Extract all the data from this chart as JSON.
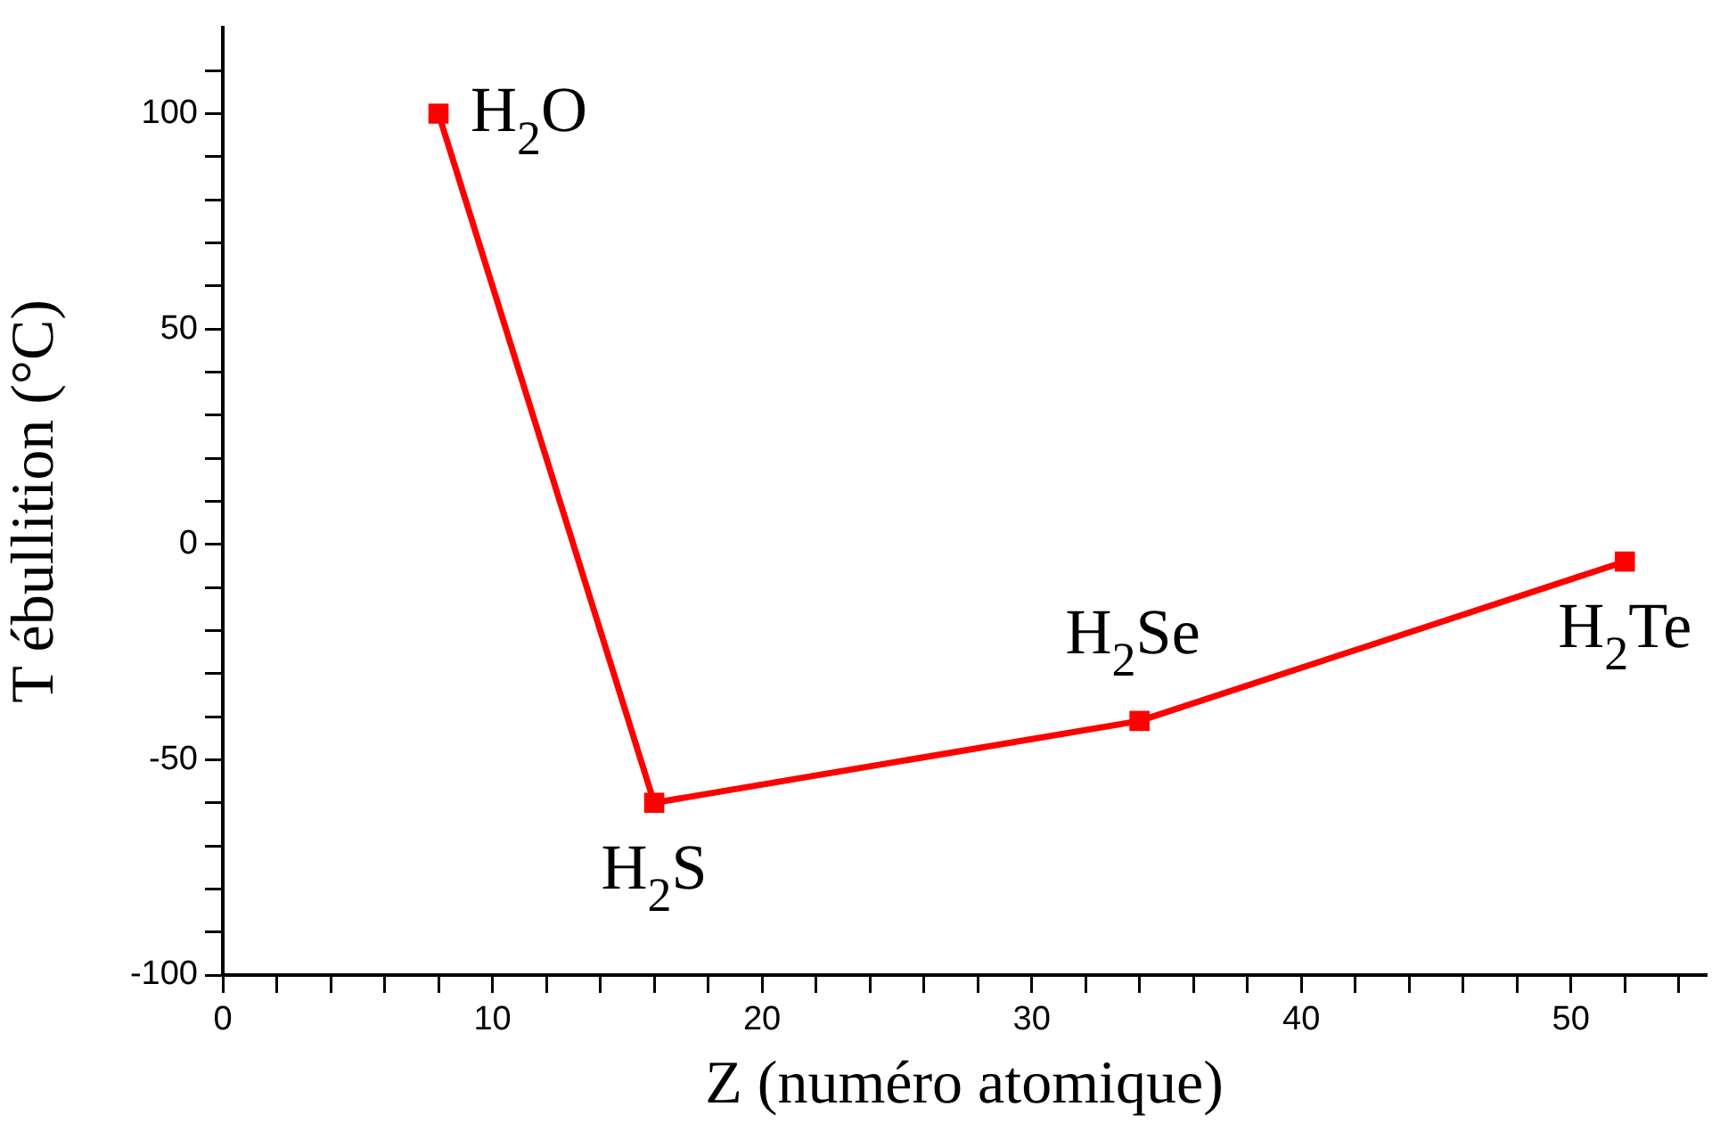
{
  "chart_data": {
    "type": "line",
    "xlabel": "Z (numéro atomique)",
    "ylabel": "T ébullition (°C)",
    "x": [
      8,
      16,
      34,
      52
    ],
    "series": [
      {
        "color": "#ff0000",
        "values": [
          100,
          -60,
          -41,
          -4
        ]
      }
    ],
    "marker": "square",
    "line_style": "solid",
    "grid": false,
    "legend": false,
    "xlim": [
      0,
      55
    ],
    "ylim": [
      -100,
      120
    ],
    "xticks": [
      0,
      {
        "value": 2,
        "label": null
      },
      {
        "value": 4,
        "label": null
      },
      {
        "value": 6,
        "label": null
      },
      {
        "value": 8,
        "label": null
      },
      10,
      {
        "value": 12,
        "label": null
      },
      {
        "value": 14,
        "label": null
      },
      {
        "value": 16,
        "label": null
      },
      {
        "value": 18,
        "label": null
      },
      20,
      {
        "value": 22,
        "label": null
      },
      {
        "value": 24,
        "label": null
      },
      {
        "value": 26,
        "label": null
      },
      {
        "value": 28,
        "label": null
      },
      30,
      {
        "value": 32,
        "label": null
      },
      {
        "value": 34,
        "label": null
      },
      {
        "value": 36,
        "label": null
      },
      {
        "value": 38,
        "label": null
      },
      40,
      {
        "value": 42,
        "label": null
      },
      {
        "value": 44,
        "label": null
      },
      {
        "value": 46,
        "label": null
      },
      {
        "value": 48,
        "label": null
      },
      50,
      {
        "value": 52,
        "label": null
      },
      {
        "value": 54,
        "label": null
      }
    ],
    "yticks": [
      -100,
      {
        "value": -90,
        "label": null
      },
      {
        "value": -80,
        "label": null
      },
      {
        "value": -70,
        "label": null
      },
      {
        "value": -60,
        "label": null
      },
      -50,
      {
        "value": -40,
        "label": null
      },
      {
        "value": -30,
        "label": null
      },
      {
        "value": -20,
        "label": null
      },
      {
        "value": -10,
        "label": null
      },
      0,
      {
        "value": 10,
        "label": null
      },
      {
        "value": 20,
        "label": null
      },
      {
        "value": 30,
        "label": null
      },
      {
        "value": 40,
        "label": null
      },
      50,
      {
        "value": 60,
        "label": null
      },
      {
        "value": 70,
        "label": null
      },
      {
        "value": 80,
        "label": null
      },
      {
        "value": 90,
        "label": null
      },
      100,
      {
        "value": 110,
        "label": null
      }
    ],
    "annotations": [
      {
        "text": "H$_{2}$O",
        "x": 8,
        "y": 100
      },
      {
        "text": "H$_{2}$S",
        "x": 16,
        "y": -60
      },
      {
        "text": "H$_{2}$Se",
        "x": 34,
        "y": -41
      },
      {
        "text": "H$_{2}$Te",
        "x": 52,
        "y": -4
      }
    ]
  }
}
